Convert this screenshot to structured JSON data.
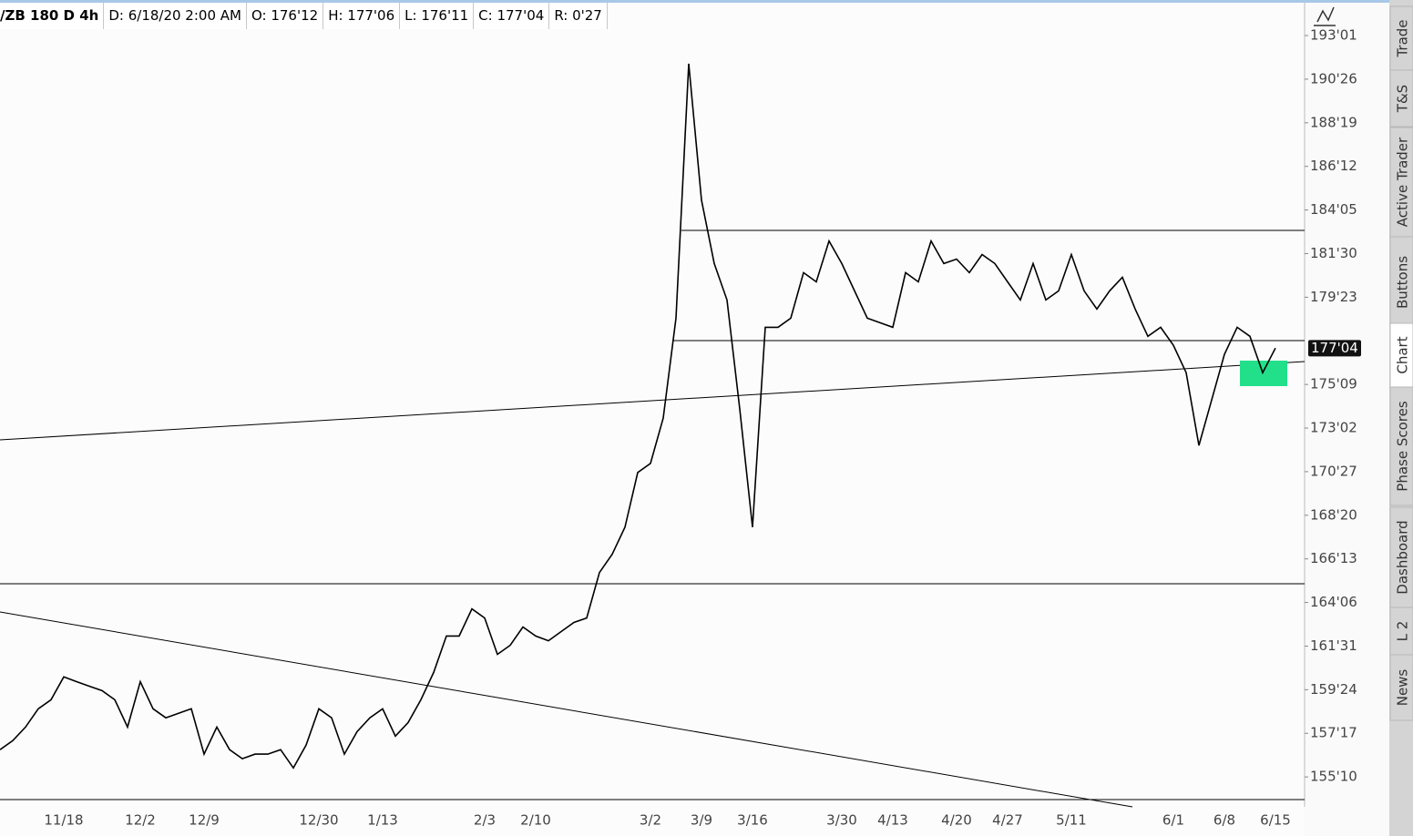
{
  "toolbar": {
    "fields": [
      "/ZB 180 D 4h",
      "D: 6/18/20 2:00 AM",
      "O: 176'12",
      "H: 177'06",
      "L: 176'11",
      "C: 177'04",
      "R: 0'27"
    ]
  },
  "side_tabs": [
    "Trade",
    "T&S",
    "Active Trader",
    "Buttons",
    "Chart",
    "Phase Scores",
    "Dashboard",
    "L 2",
    "News"
  ],
  "chart_data": {
    "type": "line",
    "color": "#000000",
    "categories": [
      null,
      null,
      null,
      null,
      null,
      "11/18",
      null,
      null,
      null,
      null,
      null,
      "12/2",
      null,
      null,
      null,
      null,
      "12/9",
      null,
      null,
      null,
      null,
      null,
      null,
      null,
      null,
      "12/30",
      null,
      null,
      null,
      null,
      "1/13",
      null,
      null,
      null,
      null,
      null,
      null,
      null,
      "2/3",
      null,
      null,
      null,
      "2/10",
      null,
      null,
      null,
      null,
      null,
      null,
      null,
      null,
      "3/2",
      null,
      null,
      null,
      "3/9",
      null,
      null,
      null,
      "3/16",
      null,
      null,
      null,
      null,
      null,
      null,
      "3/30",
      null,
      null,
      null,
      "4/13",
      null,
      null,
      null,
      null,
      "4/20",
      null,
      null,
      null,
      "4/27",
      null,
      null,
      null,
      null,
      "5/11",
      null,
      null,
      null,
      null,
      null,
      null,
      null,
      "6/1",
      null,
      null,
      null,
      "6/8",
      null,
      null,
      null,
      "6/15"
    ],
    "values": [
      156.7,
      157.16,
      157.85,
      158.78,
      159.24,
      160.4,
      160.16,
      159.93,
      159.7,
      159.24,
      157.85,
      160.16,
      158.78,
      158.32,
      158.55,
      158.78,
      156.47,
      157.85,
      156.7,
      156.24,
      156.47,
      156.47,
      156.7,
      155.77,
      156.93,
      158.78,
      158.32,
      156.47,
      157.62,
      158.32,
      158.78,
      157.39,
      158.08,
      159.24,
      160.63,
      162.48,
      162.48,
      163.86,
      163.4,
      161.55,
      162.01,
      162.94,
      162.48,
      162.24,
      162.71,
      163.17,
      163.4,
      165.71,
      166.64,
      168.02,
      170.8,
      171.26,
      173.57,
      178.65,
      191.6,
      184.66,
      181.43,
      179.58,
      174.03,
      168.02,
      178.19,
      178.19,
      178.65,
      180.97,
      180.5,
      182.58,
      181.43,
      180.04,
      178.65,
      178.42,
      178.19,
      180.97,
      180.5,
      182.58,
      181.43,
      181.66,
      180.97,
      181.89,
      181.43,
      180.5,
      179.58,
      181.43,
      179.58,
      180.04,
      181.89,
      180.04,
      179.12,
      180.04,
      180.73,
      179.12,
      177.73,
      178.19,
      177.27,
      175.88,
      172.18,
      174.49,
      176.81,
      178.19,
      177.73,
      175.88,
      177.13
    ],
    "ylim": [
      154.16,
      193.45
    ],
    "yticks": [
      {
        "value": 193.03125,
        "label": "193'01"
      },
      {
        "value": 190.8125,
        "label": "190'26"
      },
      {
        "value": 188.59375,
        "label": "188'19"
      },
      {
        "value": 186.375,
        "label": "186'12"
      },
      {
        "value": 184.15625,
        "label": "184'05"
      },
      {
        "value": 181.9375,
        "label": "181'30"
      },
      {
        "value": 179.71875,
        "label": "179'23"
      },
      {
        "value": 175.28125,
        "label": "175'09"
      },
      {
        "value": 173.0625,
        "label": "173'02"
      },
      {
        "value": 170.84375,
        "label": "170'27"
      },
      {
        "value": 168.625,
        "label": "168'20"
      },
      {
        "value": 166.40625,
        "label": "166'13"
      },
      {
        "value": 164.1875,
        "label": "164'06"
      },
      {
        "value": 161.96875,
        "label": "161'31"
      },
      {
        "value": 159.75,
        "label": "159'24"
      },
      {
        "value": 157.53125,
        "label": "157'17"
      },
      {
        "value": 155.3125,
        "label": "155'10"
      }
    ],
    "last_price": {
      "value": 177.125,
      "label": "177'04"
    }
  }
}
